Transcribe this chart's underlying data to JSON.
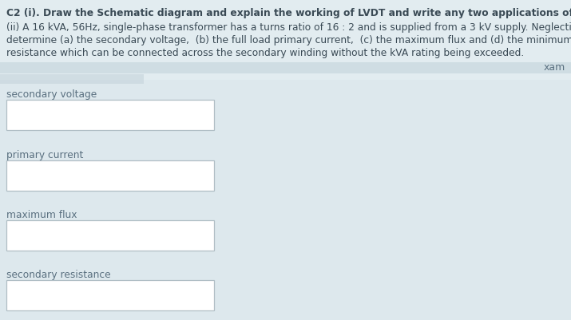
{
  "background_color": "#dde8ed",
  "text_color_dark": "#3a4a55",
  "text_color_label": "#5a7080",
  "title_line1": "C2 (i). Draw the Schematic diagram and explain the working of LVDT and write any two applications of it.",
  "title_line2": "(ii) A 16 kVA, 56Hz, single-phase transformer has a turns ratio of 16 : 2 and is supplied from a 3 kV supply. Neglecting losses,",
  "title_line3": "determine (a) the secondary voltage,  (b) the full load primary current,  (c) the maximum flux and (d) the minimum value of load",
  "title_line4": "resistance which can be connected across the secondary winding without the kVA rating being exceeded.",
  "title_fontsize": 8.8,
  "label_fontsize": 8.8,
  "fields": [
    "secondary voltage",
    "primary current",
    "maximum flux",
    "secondary resistance"
  ],
  "box_facecolor": "#ffffff",
  "box_edgecolor": "#b0bec5",
  "stripe_color1": "#c8d8de",
  "stripe_color2": "#c0d0d8",
  "xam_color": "#5a7080"
}
